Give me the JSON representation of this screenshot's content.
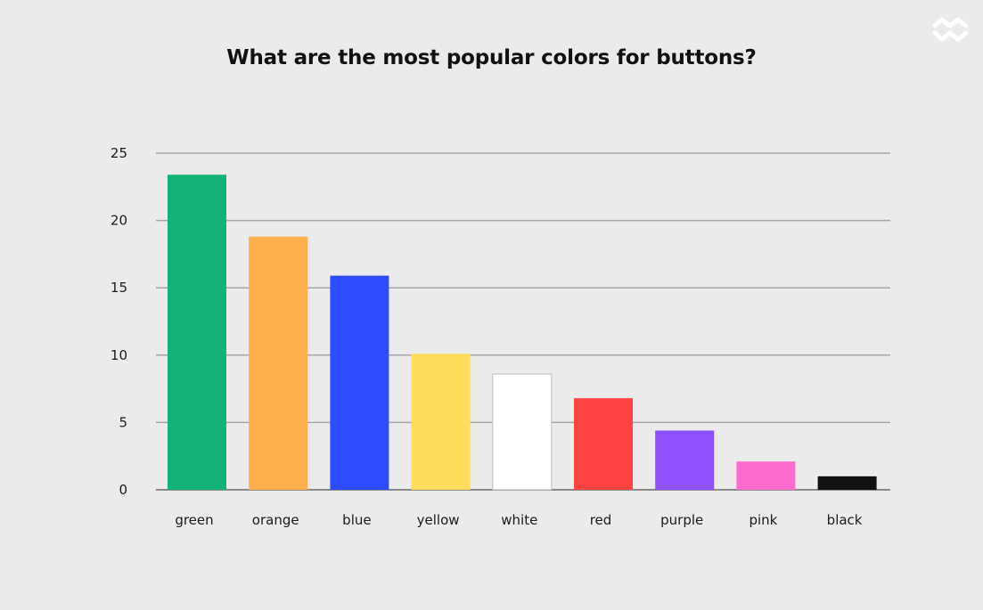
{
  "chart_data": {
    "type": "bar",
    "title": "What are the most popular colors for buttons?",
    "xlabel": "",
    "ylabel": "",
    "ylim": [
      0,
      25
    ],
    "yticks": [
      0,
      5,
      10,
      15,
      20,
      25
    ],
    "grid": true,
    "categories": [
      "green",
      "orange",
      "blue",
      "yellow",
      "white",
      "red",
      "purple",
      "pink",
      "black"
    ],
    "values": [
      23.4,
      18.8,
      15.9,
      10.1,
      8.6,
      6.8,
      4.4,
      2.1,
      1.0
    ],
    "bar_colors": [
      "#13b277",
      "#ffae4d",
      "#2f4bff",
      "#ffdc5b",
      "#ffffff",
      "#ff4242",
      "#8f50ff",
      "#ff6bcf",
      "#111111"
    ]
  },
  "logo": {
    "icon": "brand-logo-icon",
    "color": "#ffffff"
  }
}
